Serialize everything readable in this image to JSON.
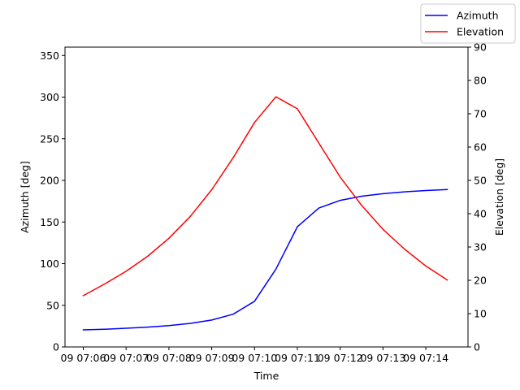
{
  "chart_data": {
    "type": "line",
    "xlabel": "Time",
    "ylabel_left": "Azimuth [deg]",
    "ylabel_right": "Elevation [deg]",
    "ylim_left": [
      0,
      360
    ],
    "ylim_right": [
      0,
      90
    ],
    "yticks_left": [
      "0",
      "50",
      "100",
      "150",
      "200",
      "250",
      "300",
      "350"
    ],
    "yticks_right": [
      "0",
      "10",
      "20",
      "30",
      "40",
      "50",
      "60",
      "70",
      "80",
      "90"
    ],
    "x_tick_labels": [
      "09 07:06",
      "09 07:07",
      "09 07:08",
      "09 07:09",
      "09 07:10",
      "09 07:11",
      "09 07:12",
      "09 07:13",
      "09 07:14"
    ],
    "x": [
      "07:06:00",
      "07:06:30",
      "07:07:00",
      "07:07:30",
      "07:08:00",
      "07:08:30",
      "07:09:00",
      "07:09:30",
      "07:10:00",
      "07:10:30",
      "07:11:00",
      "07:11:30",
      "07:12:00",
      "07:12:30",
      "07:13:00",
      "07:13:30",
      "07:14:00",
      "07:14:30"
    ],
    "legend_position": "top-right",
    "grid": false,
    "series": [
      {
        "name": "Azimuth",
        "axis": "left",
        "color": "#0000ff",
        "values": [
          20.5,
          21.3,
          22.4,
          23.8,
          25.7,
          28.3,
          32.3,
          39.3,
          54.8,
          93.5,
          144.3,
          166.7,
          176.0,
          181.0,
          184.0,
          186.2,
          187.8,
          189.0
        ]
      },
      {
        "name": "Elevation",
        "axis": "right",
        "color": "#ff0000",
        "values": [
          15.4,
          18.9,
          22.7,
          27.2,
          32.6,
          39.2,
          47.2,
          56.8,
          67.4,
          75.1,
          71.5,
          61.2,
          51.0,
          42.5,
          35.3,
          29.4,
          24.3,
          20.1
        ]
      }
    ]
  }
}
